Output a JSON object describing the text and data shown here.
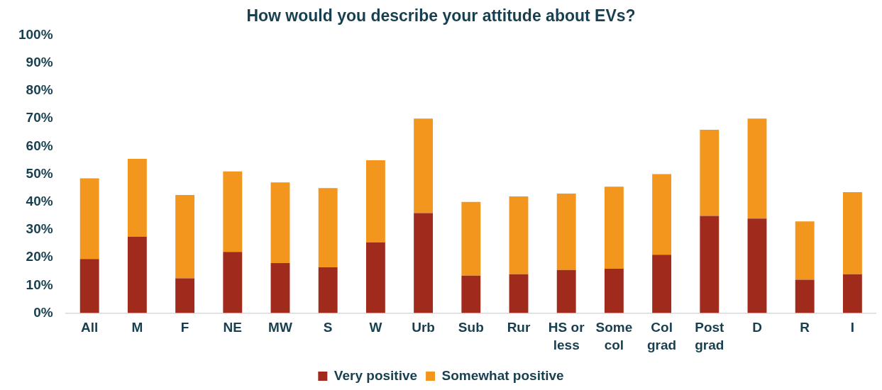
{
  "chart_data": {
    "type": "bar",
    "title": "How would you describe your attitude about EVs?",
    "categories": [
      "All",
      "M",
      "F",
      "NE",
      "MW",
      "S",
      "W",
      "Urb",
      "Sub",
      "Rur",
      "HS or less",
      "Some col",
      "Col grad",
      "Post grad",
      "D",
      "R",
      "I"
    ],
    "series": [
      {
        "name": "Very positive",
        "color": "#a02b1d",
        "values": [
          19.5,
          27.5,
          12.5,
          22,
          18,
          16.5,
          25.5,
          36,
          13.5,
          14,
          15.5,
          16,
          21,
          35,
          34,
          12,
          14
        ]
      },
      {
        "name": "Somewhat positive",
        "color": "#f2961e",
        "values": [
          29,
          28,
          30,
          29,
          29,
          28.5,
          29.5,
          34,
          26.5,
          28,
          27.5,
          29.5,
          29,
          31,
          36,
          21,
          29.5
        ]
      }
    ],
    "stacked": true,
    "ylim": [
      0,
      100
    ],
    "yticks": [
      {
        "value": 0,
        "label": "0%"
      },
      {
        "value": 10,
        "label": "10%"
      },
      {
        "value": 20,
        "label": "20%"
      },
      {
        "value": 30,
        "label": "30%"
      },
      {
        "value": 40,
        "label": "40%"
      },
      {
        "value": 50,
        "label": "50%"
      },
      {
        "value": 60,
        "label": "60%"
      },
      {
        "value": 70,
        "label": "70%"
      },
      {
        "value": 80,
        "label": "80%"
      },
      {
        "value": 90,
        "label": "90%"
      },
      {
        "value": 100,
        "label": "100%"
      }
    ],
    "legend": "bottom"
  }
}
